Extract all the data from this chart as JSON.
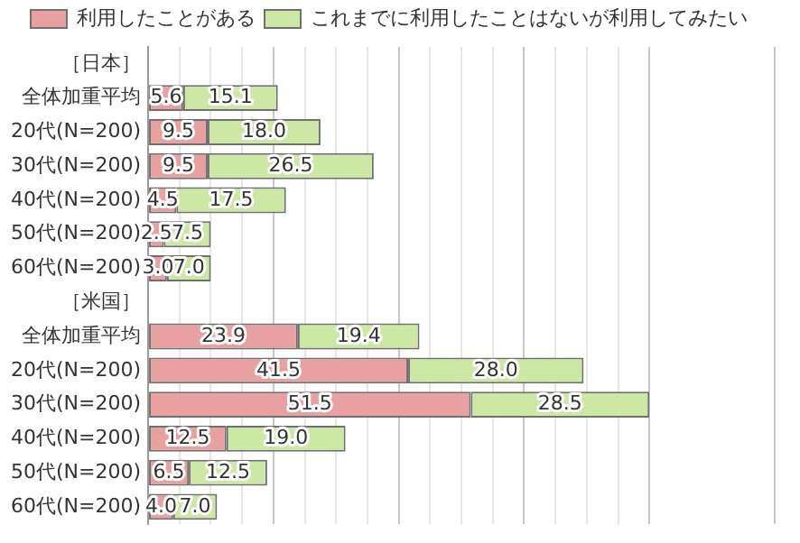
{
  "chart_data": {
    "type": "bar",
    "orientation": "horizontal",
    "stacked": true,
    "categories": [
      "［日本］",
      "全体加重平均",
      "20代(N=200)",
      "30代(N=200)",
      "40代(N=200)",
      "50代(N=200)",
      "60代(N=200)",
      "［米国］",
      "全体加重平均",
      "20代(N=200)",
      "30代(N=200)",
      "40代(N=200)",
      "50代(N=200)",
      "60代(N=200)"
    ],
    "series": [
      {
        "name": "利用したことがある",
        "color": "#e8a0a0",
        "values": [
          null,
          5.6,
          9.5,
          9.5,
          4.5,
          2.5,
          3.0,
          null,
          23.9,
          41.5,
          51.5,
          12.5,
          6.5,
          4.0
        ],
        "value_labels": [
          null,
          "5.6",
          "9.5",
          "9.5",
          "4.5",
          "2.5",
          "3.0",
          null,
          "23.9",
          "41.5",
          "51.5",
          "12.5",
          "6.5",
          "4.0"
        ]
      },
      {
        "name": "これまでに利用したことはないが利用してみたい",
        "color": "#cce8a4",
        "values": [
          null,
          15.1,
          18.0,
          26.5,
          17.5,
          7.5,
          7.0,
          null,
          19.4,
          28.0,
          28.5,
          19.0,
          12.5,
          7.0
        ],
        "value_labels": [
          null,
          "15.1",
          "18.0",
          "26.5",
          "17.5",
          "7.5",
          "7.0",
          null,
          "19.4",
          "28.0",
          "28.5",
          "19.0",
          "12.5",
          "7.0"
        ]
      }
    ],
    "xlim": [
      0,
      100
    ],
    "xticks": [
      {
        "value": 0,
        "label": null
      },
      {
        "value": 5,
        "label": null
      },
      {
        "value": 10,
        "label": null
      },
      {
        "value": 15,
        "label": null
      },
      {
        "value": 20,
        "label": null
      },
      {
        "value": 25,
        "label": null
      },
      {
        "value": 30,
        "label": null
      },
      {
        "value": 35,
        "label": null
      },
      {
        "value": 40,
        "label": null
      },
      {
        "value": 45,
        "label": null
      },
      {
        "value": 50,
        "label": null
      },
      {
        "value": 55,
        "label": null
      },
      {
        "value": 60,
        "label": null
      },
      {
        "value": 65,
        "label": null
      },
      {
        "value": 70,
        "label": null
      },
      {
        "value": 75,
        "label": null
      },
      {
        "value": 80,
        "label": null
      }
    ],
    "grid": "x",
    "legend": "top",
    "tick_labels": "y"
  }
}
